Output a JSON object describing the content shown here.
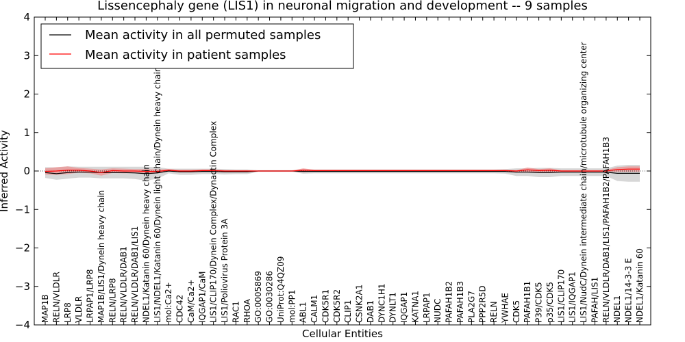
{
  "chart_data": {
    "type": "line",
    "title": "Lissencephaly gene (LIS1) in neuronal migration and development -- 9 samples",
    "xlabel": "Cellular Entities",
    "ylabel": "Inferred Activity",
    "ylim": [
      -4,
      4
    ],
    "yticks": [
      -4,
      -3,
      -2,
      -1,
      0,
      1,
      2,
      3,
      4
    ],
    "ytick_labels": [
      "−4",
      "−3",
      "−2",
      "−1",
      "0",
      "1",
      "2",
      "3",
      "4"
    ],
    "legend_position": "top-left",
    "grid": false,
    "categories": [
      "MAP1B",
      "RELN/VLDLR",
      "LRP8",
      "VLDLR",
      "LRPAP1/LRP8",
      "MAP1B/LIS1/Dynein heavy chain",
      "RELN/LRP8",
      "RELN/VLDLR/DAB1",
      "RELN/VLDLR/DAB1/LIS1",
      "NDEL1/Katanin 60/Dynein heavy chain",
      "LIS1/NDEL1/Katanin 60/Dynein light chain/Dynein heavy chain",
      "mol:Ca2+",
      "CDC42",
      "CaM/Ca2+",
      "IQGAP1/CaM",
      "LIS1/CLIP170/Dynein Complex/Dynactin Complex",
      "LIS1/Poliovirus Protein 3A",
      "RAC1",
      "RHOA",
      "GO:0005869",
      "GO:0030286",
      "UniProt:Q4QZ09",
      "mol:PP1",
      "ABL1",
      "CALM1",
      "CDK5R1",
      "CDK5R2",
      "CLIP1",
      "CSNK2A1",
      "DAB1",
      "DYNC1H1",
      "DYNLT1",
      "IQGAP1",
      "KATNA1",
      "LRPAP1",
      "NUDC",
      "PAFAH1B2",
      "PAFAH1B3",
      "PLA2G7",
      "PPP2R5D",
      "RELN",
      "YWHAE",
      "CDK5",
      "PAFAH1B1",
      "P39/CDK5",
      "p35/CDK5",
      "LIS1/CLIP170",
      "LIS1/IQGAP1",
      "LIS1/NudC/Dynein intermediate chain/microtubule organizing center",
      "PAFAH/LIS1",
      "RELN/VLDLR/DAB1/LIS1/PAFAH1B2/PAFAH1B3",
      "NDEL1",
      "NDEL1/14-3-3 E",
      "NDEL1/Katanin 60"
    ],
    "series": [
      {
        "name": "Mean activity in all permuted samples",
        "color": "#000000",
        "band_color": "#b0b0b0",
        "values": [
          -0.04,
          -0.07,
          -0.04,
          -0.03,
          -0.03,
          -0.04,
          -0.04,
          -0.04,
          -0.05,
          -0.07,
          -0.05,
          0.0,
          -0.02,
          -0.02,
          -0.01,
          -0.01,
          -0.02,
          -0.02,
          -0.02,
          0.0,
          0.0,
          0.0,
          0.0,
          -0.01,
          -0.01,
          -0.01,
          -0.01,
          -0.01,
          -0.01,
          -0.01,
          -0.01,
          -0.01,
          -0.01,
          -0.01,
          -0.01,
          -0.01,
          -0.01,
          -0.01,
          -0.01,
          -0.01,
          -0.01,
          -0.01,
          -0.03,
          -0.03,
          -0.04,
          -0.04,
          -0.03,
          -0.03,
          -0.03,
          -0.03,
          -0.03,
          -0.06,
          -0.06,
          -0.06
        ],
        "band": [
          0.14,
          0.16,
          0.16,
          0.14,
          0.14,
          0.15,
          0.15,
          0.15,
          0.16,
          0.18,
          0.15,
          0.06,
          0.08,
          0.08,
          0.07,
          0.07,
          0.07,
          0.06,
          0.06,
          0.02,
          0.02,
          0.02,
          0.02,
          0.06,
          0.05,
          0.05,
          0.05,
          0.05,
          0.05,
          0.05,
          0.05,
          0.05,
          0.05,
          0.05,
          0.05,
          0.05,
          0.05,
          0.05,
          0.05,
          0.05,
          0.05,
          0.06,
          0.1,
          0.1,
          0.12,
          0.12,
          0.1,
          0.1,
          0.1,
          0.1,
          0.1,
          0.2,
          0.22,
          0.22
        ]
      },
      {
        "name": "Mean activity in patient samples",
        "color": "#ff0000",
        "band_color": "#f08080",
        "values": [
          -0.01,
          0.0,
          0.02,
          0.02,
          0.0,
          -0.04,
          0.01,
          0.0,
          0.0,
          -0.01,
          -0.01,
          0.02,
          0.0,
          0.0,
          0.01,
          0.01,
          0.0,
          0.0,
          0.0,
          0.0,
          0.0,
          0.0,
          0.0,
          0.02,
          0.01,
          0.01,
          0.01,
          0.01,
          0.01,
          0.01,
          0.01,
          0.01,
          0.01,
          0.01,
          0.01,
          0.01,
          0.01,
          0.01,
          0.01,
          0.01,
          0.01,
          0.01,
          0.0,
          0.03,
          0.01,
          0.02,
          0.0,
          0.0,
          0.0,
          0.0,
          0.0,
          0.04,
          0.05,
          0.05
        ],
        "band": [
          0.08,
          0.1,
          0.1,
          0.06,
          0.06,
          0.08,
          0.06,
          0.06,
          0.05,
          0.06,
          0.05,
          0.03,
          0.03,
          0.03,
          0.03,
          0.03,
          0.02,
          0.02,
          0.02,
          0.01,
          0.01,
          0.01,
          0.01,
          0.05,
          0.02,
          0.02,
          0.02,
          0.02,
          0.02,
          0.02,
          0.02,
          0.02,
          0.02,
          0.02,
          0.02,
          0.02,
          0.02,
          0.02,
          0.02,
          0.02,
          0.02,
          0.02,
          0.02,
          0.06,
          0.04,
          0.05,
          0.02,
          0.02,
          0.02,
          0.02,
          0.02,
          0.06,
          0.07,
          0.07
        ]
      }
    ]
  }
}
